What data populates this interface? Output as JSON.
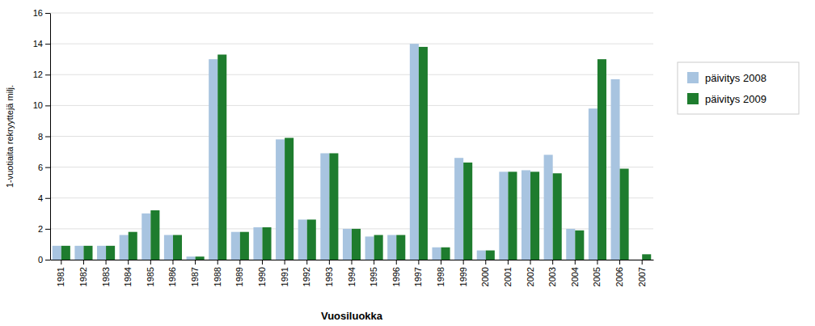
{
  "chart_data": {
    "type": "bar",
    "categories": [
      "1981",
      "1982",
      "1983",
      "1984",
      "1985",
      "1986",
      "1987",
      "1988",
      "1989",
      "1990",
      "1991",
      "1992",
      "1993",
      "1994",
      "1995",
      "1996",
      "1997",
      "1998",
      "1999",
      "2000",
      "2001",
      "2002",
      "2003",
      "2004",
      "2005",
      "2006",
      "2007"
    ],
    "series": [
      {
        "name": "päivitys 2008",
        "color": "#a8c4e0",
        "values": [
          0.9,
          0.9,
          0.9,
          1.6,
          3.0,
          1.6,
          0.2,
          13.0,
          1.8,
          2.1,
          7.8,
          2.6,
          6.9,
          2.0,
          1.5,
          1.6,
          14.0,
          0.8,
          6.6,
          0.6,
          5.7,
          5.8,
          6.8,
          2.0,
          9.8,
          11.7,
          0.0
        ]
      },
      {
        "name": "päivitys 2009",
        "color": "#1e7c2e",
        "values": [
          0.9,
          0.9,
          0.9,
          1.8,
          3.2,
          1.6,
          0.2,
          13.3,
          1.8,
          2.1,
          7.9,
          2.6,
          6.9,
          2.0,
          1.6,
          1.6,
          13.8,
          0.8,
          6.3,
          0.6,
          5.7,
          5.7,
          5.6,
          1.9,
          13.0,
          5.9,
          0.35
        ]
      }
    ],
    "xlabel": "Vuosiluokka",
    "ylabel": "1-vuotiaita rekryyttejä milj.",
    "ylim": [
      0,
      16
    ],
    "yticks": [
      0,
      2,
      4,
      6,
      8,
      10,
      12,
      14,
      16
    ],
    "grid": true,
    "legend": "right"
  }
}
